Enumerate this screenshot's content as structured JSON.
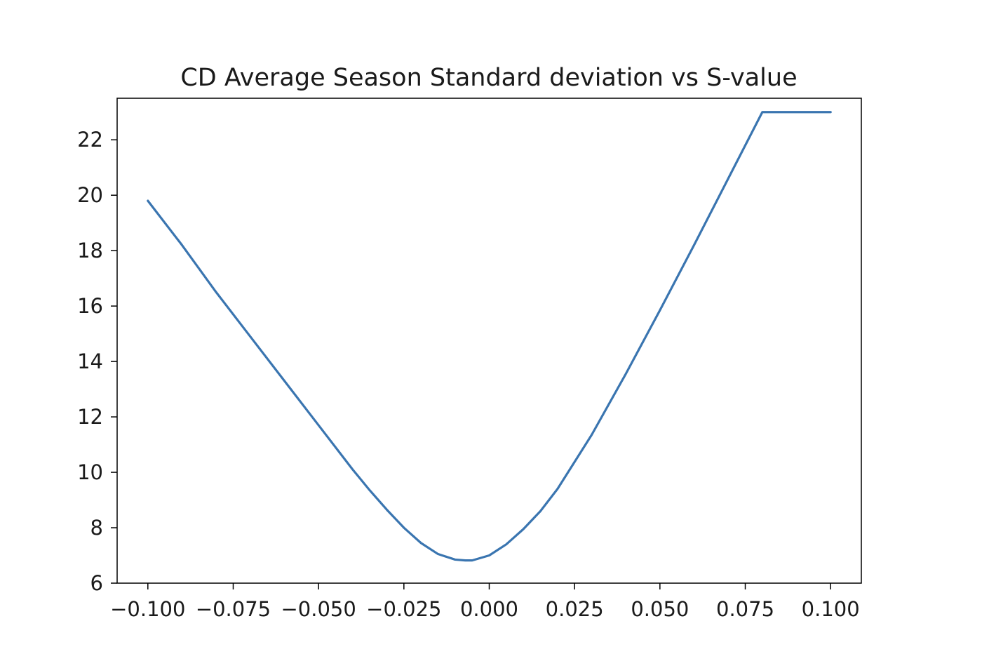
{
  "chart_data": {
    "type": "line",
    "title": "CD Average Season Standard deviation vs S-value",
    "xlabel": "",
    "ylabel": "",
    "xlim": [
      -0.1,
      0.1
    ],
    "ylim": [
      6,
      23.5
    ],
    "grid": false,
    "line_color": "#3a75b0",
    "x_ticks": [
      {
        "value": -0.1,
        "label": "−0.100"
      },
      {
        "value": -0.075,
        "label": "−0.075"
      },
      {
        "value": -0.05,
        "label": "−0.050"
      },
      {
        "value": -0.025,
        "label": "−0.025"
      },
      {
        "value": 0.0,
        "label": "0.000"
      },
      {
        "value": 0.025,
        "label": "0.025"
      },
      {
        "value": 0.05,
        "label": "0.050"
      },
      {
        "value": 0.075,
        "label": "0.075"
      },
      {
        "value": 0.1,
        "label": "0.100"
      }
    ],
    "y_ticks": [
      {
        "value": 6,
        "label": "6"
      },
      {
        "value": 8,
        "label": "8"
      },
      {
        "value": 10,
        "label": "10"
      },
      {
        "value": 12,
        "label": "12"
      },
      {
        "value": 14,
        "label": "14"
      },
      {
        "value": 16,
        "label": "16"
      },
      {
        "value": 18,
        "label": "18"
      },
      {
        "value": 20,
        "label": "20"
      },
      {
        "value": 22,
        "label": "22"
      }
    ],
    "series": [
      {
        "x": [
          -0.1,
          -0.09,
          -0.08,
          -0.07,
          -0.06,
          -0.05,
          -0.04,
          -0.035,
          -0.03,
          -0.025,
          -0.02,
          -0.015,
          -0.01,
          -0.007,
          -0.005,
          0.0,
          0.005,
          0.01,
          0.015,
          0.02,
          0.03,
          0.04,
          0.05,
          0.06,
          0.07,
          0.08,
          0.09,
          0.1
        ],
        "y": [
          19.8,
          18.2,
          16.5,
          14.9,
          13.3,
          11.7,
          10.1,
          9.35,
          8.65,
          8.0,
          7.45,
          7.05,
          6.85,
          6.82,
          6.82,
          7.0,
          7.4,
          7.95,
          8.6,
          9.4,
          11.35,
          13.55,
          15.85,
          18.2,
          20.6,
          23.0,
          23.0,
          23.0
        ]
      }
    ]
  }
}
